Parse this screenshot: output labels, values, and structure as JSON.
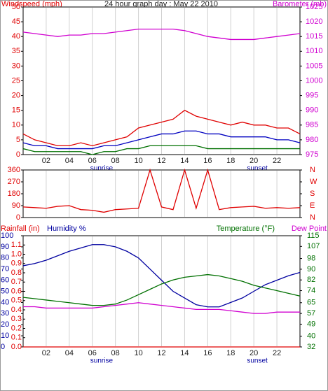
{
  "chart_data": [
    {
      "type": "line",
      "title": "24 hour graph day : May 22 2010",
      "ylabel": "Windspeed (mph)",
      "y2label": "Barometer (mb)",
      "x": [
        0,
        1,
        2,
        3,
        4,
        5,
        6,
        7,
        8,
        9,
        10,
        11,
        12,
        13,
        14,
        15,
        16,
        17,
        18,
        19,
        20,
        21,
        22,
        23,
        24
      ],
      "xlim": [
        0,
        24
      ],
      "xticks": [
        {
          "value": 2,
          "label": "02"
        },
        {
          "value": 4,
          "label": "04"
        },
        {
          "value": 6,
          "label": "06"
        },
        {
          "value": 8,
          "label": "08"
        },
        {
          "value": 10,
          "label": "10"
        },
        {
          "value": 12,
          "label": "12"
        },
        {
          "value": 14,
          "label": "14"
        },
        {
          "value": 16,
          "label": "16"
        },
        {
          "value": 18,
          "label": "18"
        },
        {
          "value": 20,
          "label": "20"
        },
        {
          "value": 22,
          "label": "22"
        }
      ],
      "annotations": [
        {
          "text": "sunrise",
          "x": 6.8
        },
        {
          "text": "sunset",
          "x": 20.3
        }
      ],
      "ylim": [
        0,
        50
      ],
      "yticks": [
        0,
        5,
        10,
        15,
        20,
        25,
        30,
        35,
        40,
        45,
        50
      ],
      "y2lim": [
        975,
        1025
      ],
      "y2ticks": [
        975,
        980,
        985,
        990,
        995,
        1000,
        1005,
        1010,
        1015,
        1020,
        1025
      ],
      "grid": true,
      "series": [
        {
          "color": "#e00000",
          "values": [
            7,
            5,
            4,
            3,
            3,
            4,
            3,
            4,
            5,
            6,
            9,
            10,
            11,
            12,
            15,
            13,
            12,
            11,
            10,
            11,
            10,
            10,
            9,
            9,
            7
          ]
        },
        {
          "color": "#0000c0",
          "values": [
            4,
            3,
            3,
            2,
            2,
            2,
            2,
            3,
            3,
            4,
            5,
            6,
            7,
            7,
            8,
            8,
            7,
            7,
            6,
            6,
            6,
            6,
            5,
            5,
            4
          ]
        },
        {
          "color": "#007000",
          "values": [
            2,
            1,
            1,
            1,
            1,
            1,
            0,
            1,
            1,
            2,
            2,
            3,
            3,
            3,
            3,
            3,
            2,
            2,
            2,
            2,
            2,
            2,
            2,
            2,
            2
          ]
        },
        {
          "color": "#d000d0",
          "axis": "y2",
          "values": [
            1016.5,
            1016,
            1015.5,
            1015,
            1015.5,
            1015.5,
            1016,
            1016,
            1016.5,
            1017,
            1017.5,
            1017.5,
            1017.5,
            1017.5,
            1017,
            1016,
            1015,
            1014.5,
            1014,
            1014,
            1014,
            1014.5,
            1015,
            1015.5,
            1016
          ]
        }
      ]
    },
    {
      "type": "line",
      "x": [
        0,
        1,
        2,
        3,
        4,
        5,
        6,
        7,
        8,
        9,
        10,
        11,
        12,
        13,
        14,
        15,
        16,
        17,
        18,
        19,
        20,
        21,
        22,
        23,
        24
      ],
      "xlim": [
        0,
        24
      ],
      "ylim": [
        0,
        360
      ],
      "yticks": [
        0,
        90,
        180,
        270,
        360
      ],
      "y2lim": [
        0,
        360
      ],
      "y2ticks": [
        {
          "value": 0,
          "label": "N"
        },
        {
          "value": 90,
          "label": "E"
        },
        {
          "value": 180,
          "label": "S"
        },
        {
          "value": 270,
          "label": "W"
        },
        {
          "value": 360,
          "label": "N"
        }
      ],
      "series": [
        {
          "color": "#e00000",
          "values": [
            80,
            75,
            70,
            85,
            90,
            60,
            55,
            40,
            60,
            65,
            70,
            360,
            80,
            60,
            360,
            70,
            360,
            60,
            75,
            80,
            85,
            70,
            75,
            70,
            75
          ]
        }
      ]
    },
    {
      "type": "line",
      "x": [
        0,
        1,
        2,
        3,
        4,
        5,
        6,
        7,
        8,
        9,
        10,
        11,
        12,
        13,
        14,
        15,
        16,
        17,
        18,
        19,
        20,
        21,
        22,
        23,
        24
      ],
      "xlim": [
        0,
        24
      ],
      "xticks": [
        {
          "value": 2,
          "label": "02"
        },
        {
          "value": 4,
          "label": "04"
        },
        {
          "value": 6,
          "label": "06"
        },
        {
          "value": 8,
          "label": "08"
        },
        {
          "value": 10,
          "label": "10"
        },
        {
          "value": 12,
          "label": "12"
        },
        {
          "value": 14,
          "label": "14"
        },
        {
          "value": 16,
          "label": "16"
        },
        {
          "value": 18,
          "label": "18"
        },
        {
          "value": 20,
          "label": "20"
        },
        {
          "value": 22,
          "label": "22"
        }
      ],
      "annotations": [
        {
          "text": "sunrise",
          "x": 6.8
        },
        {
          "text": "sunset",
          "x": 20.3
        }
      ],
      "ylim": [
        0,
        100
      ],
      "yticks": [
        0,
        10,
        20,
        30,
        40,
        50,
        60,
        70,
        80,
        90,
        100
      ],
      "rainlim": [
        0,
        1.2
      ],
      "rainticks": [
        {
          "value": 0,
          "label": "0.0"
        },
        {
          "value": 0.1,
          "label": "0.1"
        },
        {
          "value": 0.2,
          "label": "0.2"
        },
        {
          "value": 0.3,
          "label": "0.3"
        },
        {
          "value": 0.4,
          "label": "0.4"
        },
        {
          "value": 0.5,
          "label": "0.5"
        },
        {
          "value": 0.6,
          "label": "0.6"
        },
        {
          "value": 0.7,
          "label": "0.7"
        },
        {
          "value": 0.8,
          "label": "0.8"
        },
        {
          "value": 0.9,
          "label": "0.9"
        },
        {
          "value": 1,
          "label": "1.0"
        },
        {
          "value": 1.1,
          "label": "1.1"
        }
      ],
      "y2lim": [
        32,
        115
      ],
      "y2ticks": [
        32,
        40,
        49,
        57,
        65,
        74,
        82,
        90,
        98,
        107,
        115
      ],
      "series": [
        {
          "name": "Rainfall (in)",
          "color": "#e00000",
          "axis": "rain",
          "values": [
            0,
            0,
            0,
            0,
            0,
            0,
            0,
            0,
            0,
            0,
            0,
            0,
            0,
            0,
            0,
            0,
            0,
            0,
            0,
            0,
            0,
            0,
            0,
            0,
            0
          ]
        },
        {
          "name": "Humidity %",
          "color": "#0000a0",
          "values": [
            73,
            75,
            78,
            82,
            86,
            89,
            92,
            92,
            90,
            86,
            80,
            70,
            60,
            50,
            44,
            38,
            36,
            36,
            40,
            44,
            50,
            56,
            60,
            64,
            67
          ]
        },
        {
          "name": "Temperature (°F)",
          "color": "#007000",
          "axis": "y2",
          "values": [
            69,
            68,
            67,
            66,
            65,
            64,
            63,
            63,
            64,
            67,
            71,
            75,
            79,
            82,
            84,
            85,
            86,
            85,
            83,
            81,
            78,
            76,
            74,
            72,
            70
          ]
        },
        {
          "name": "Dew Point",
          "color": "#d000d0",
          "axis": "y2",
          "values": [
            62,
            62,
            61,
            61,
            61,
            61,
            61,
            62,
            63,
            64,
            65,
            64,
            63,
            62,
            61,
            60,
            60,
            60,
            59,
            58,
            57,
            57,
            58,
            58,
            58
          ]
        }
      ]
    }
  ]
}
